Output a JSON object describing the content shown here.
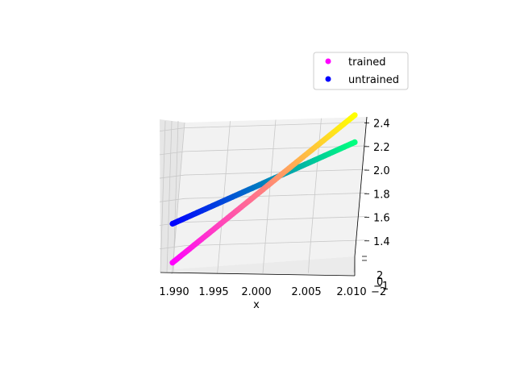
{
  "chart_data": {
    "type": "scatter",
    "projection": "3d",
    "xlabel": "x",
    "ylabel": "",
    "zlabel": "",
    "xlim": [
      1.99,
      2.01
    ],
    "ylim": [
      -2,
      2
    ],
    "zlim": [
      1.2,
      2.5
    ],
    "x_ticks": [
      "1.990",
      "1.995",
      "2.000",
      "2.005",
      "2.010"
    ],
    "y_ticks": [
      "2",
      "0",
      "−1",
      "−2"
    ],
    "z_ticks": [
      "1.4",
      "1.6",
      "1.8",
      "2.0",
      "2.2",
      "2.4"
    ],
    "legend_position": "top-right",
    "grid": true,
    "series": [
      {
        "name": "trained",
        "legend_color": "#ff00ff",
        "colormap": "spring",
        "x_range": [
          1.99,
          2.01
        ],
        "z_range": [
          1.27,
          2.5
        ],
        "trend": "linear increasing"
      },
      {
        "name": "untrained",
        "legend_color": "#0000ff",
        "colormap": "winter",
        "x_range": [
          1.99,
          2.01
        ],
        "z_range": [
          1.6,
          2.27
        ],
        "trend": "linear increasing"
      }
    ]
  }
}
